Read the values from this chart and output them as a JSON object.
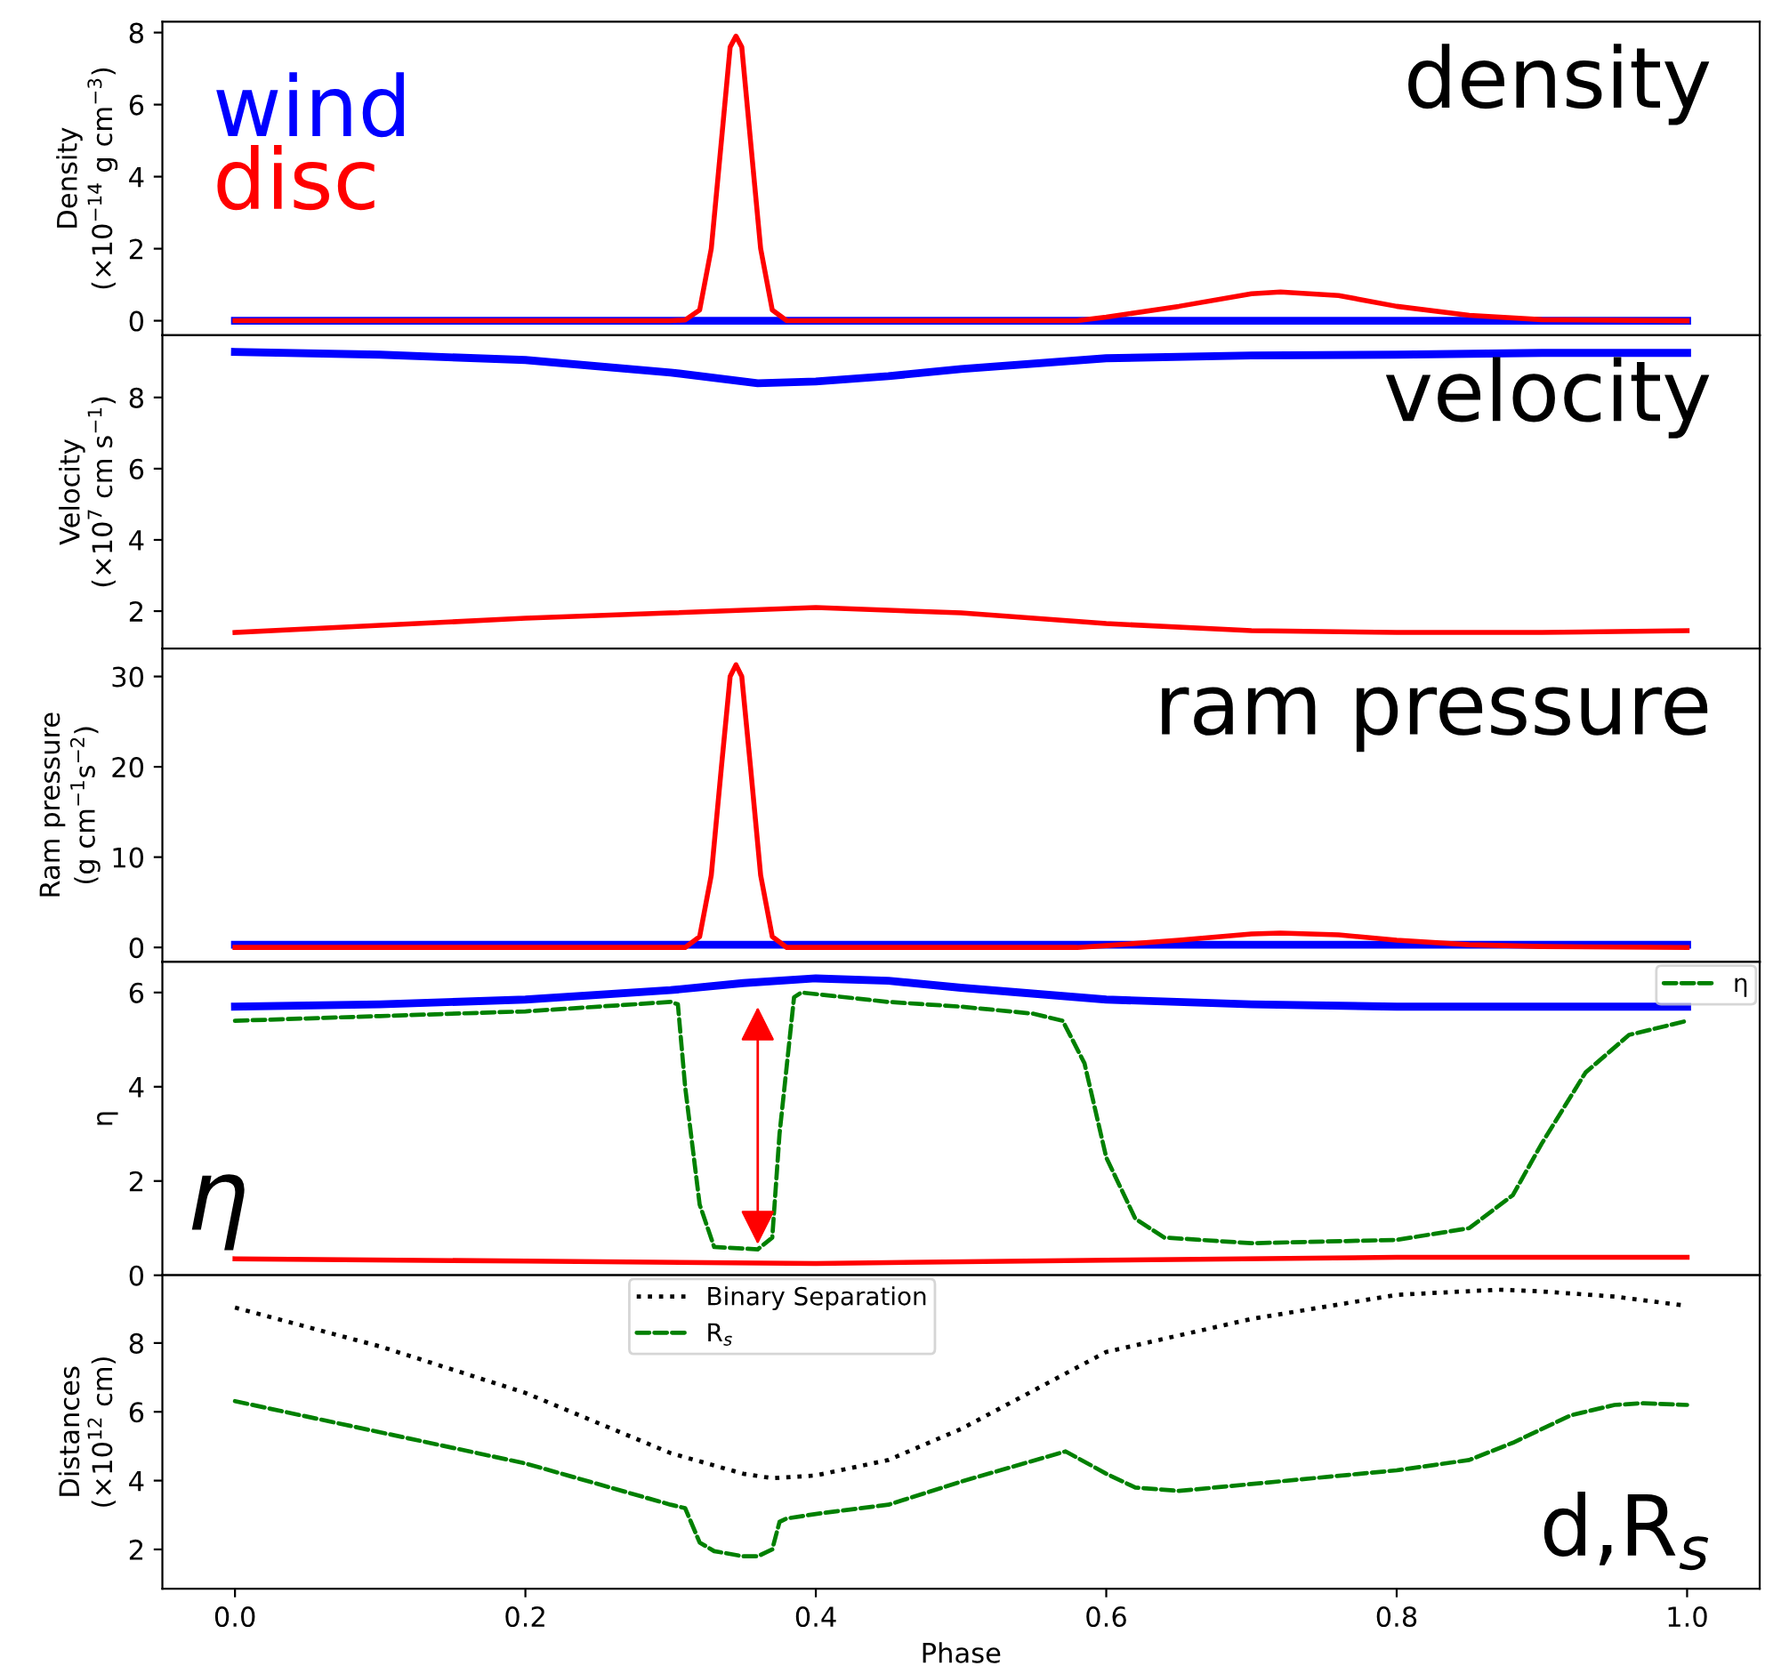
{
  "chart_data": [
    {
      "type": "line",
      "title": "density",
      "ylabel": "Density\n(×10$^{−14}$ g cm$^{−3}$)",
      "xlim": [
        -0.05,
        1.05
      ],
      "ylim": [
        -0.4,
        8.3
      ],
      "yticks": [
        0,
        2,
        4,
        6,
        8
      ],
      "tick_labels": "y",
      "legend": "top left",
      "series": [
        {
          "name": "wind",
          "color": "#0000ff",
          "x": [
            0,
            0.5,
            1
          ],
          "values": [
            0,
            0,
            0
          ]
        },
        {
          "name": "disc",
          "color": "#ff0000",
          "x": [
            0,
            0.3,
            0.31,
            0.32,
            0.328,
            0.335,
            0.341,
            0.345,
            0.349,
            0.355,
            0.362,
            0.37,
            0.38,
            0.58,
            0.6,
            0.65,
            0.7,
            0.72,
            0.76,
            0.8,
            0.85,
            0.9,
            1.0
          ],
          "values": [
            0,
            0,
            0.02,
            0.3,
            2.0,
            5.0,
            7.6,
            7.9,
            7.6,
            5.0,
            2.0,
            0.3,
            0,
            0,
            0.1,
            0.4,
            0.75,
            0.8,
            0.7,
            0.4,
            0.15,
            0.03,
            0
          ]
        }
      ]
    },
    {
      "type": "line",
      "title": "velocity",
      "ylabel": "Velocity\n(×10$^{7}$ cm s$^{−1}$)",
      "xlim": [
        -0.05,
        1.05
      ],
      "ylim": [
        0.95,
        9.75
      ],
      "yticks": [
        2,
        4,
        6,
        8
      ],
      "tick_labels": "y",
      "series": [
        {
          "color": "#0000ff",
          "x": [
            0,
            0.1,
            0.2,
            0.3,
            0.36,
            0.4,
            0.45,
            0.5,
            0.6,
            0.7,
            0.8,
            0.9,
            1.0
          ],
          "values": [
            9.28,
            9.2,
            9.05,
            8.7,
            8.4,
            8.45,
            8.6,
            8.8,
            9.1,
            9.18,
            9.2,
            9.25,
            9.25
          ]
        },
        {
          "color": "#ff0000",
          "x": [
            0,
            0.1,
            0.2,
            0.3,
            0.4,
            0.5,
            0.6,
            0.7,
            0.8,
            0.9,
            1.0
          ],
          "values": [
            1.4,
            1.6,
            1.8,
            1.95,
            2.1,
            1.95,
            1.65,
            1.45,
            1.4,
            1.4,
            1.45
          ]
        }
      ]
    },
    {
      "type": "line",
      "title": "ram pressure",
      "ylabel": "Ram pressure\n(g cm$^{−1}$s$^{−2}$)",
      "xlim": [
        -0.05,
        1.05
      ],
      "ylim": [
        -1.6,
        33.1
      ],
      "yticks": [
        0,
        10,
        20,
        30
      ],
      "tick_labels": "y",
      "series": [
        {
          "color": "#0000ff",
          "x": [
            0,
            0.2,
            0.37,
            0.5,
            0.7,
            1.0
          ],
          "values": [
            0.3,
            0.3,
            0.3,
            0.3,
            0.3,
            0.3
          ]
        },
        {
          "color": "#ff0000",
          "x": [
            0,
            0.3,
            0.31,
            0.32,
            0.328,
            0.335,
            0.341,
            0.345,
            0.349,
            0.355,
            0.362,
            0.37,
            0.38,
            0.58,
            0.6,
            0.65,
            0.7,
            0.72,
            0.76,
            0.8,
            0.85,
            0.9,
            1.0
          ],
          "values": [
            0,
            0,
            0,
            1.2,
            8,
            20,
            30,
            31.3,
            30,
            20,
            8,
            1.2,
            0,
            0,
            0.2,
            0.8,
            1.5,
            1.6,
            1.4,
            0.8,
            0.3,
            0.1,
            0
          ]
        }
      ]
    },
    {
      "type": "line",
      "title": "η",
      "ylabel": "η",
      "xlim": [
        -0.05,
        1.05
      ],
      "ylim": [
        0,
        6.65
      ],
      "yticks": [
        0,
        2,
        4,
        6
      ],
      "tick_labels": "y",
      "legend": "top right",
      "series": [
        {
          "color": "#0000ff",
          "x": [
            0,
            0.1,
            0.2,
            0.3,
            0.35,
            0.4,
            0.45,
            0.5,
            0.6,
            0.7,
            0.8,
            0.9,
            1.0
          ],
          "values": [
            5.7,
            5.75,
            5.85,
            6.05,
            6.2,
            6.3,
            6.25,
            6.1,
            5.85,
            5.75,
            5.7,
            5.7,
            5.7
          ]
        },
        {
          "color": "#ff0000",
          "x": [
            0,
            0.2,
            0.4,
            0.6,
            0.8,
            1.0
          ],
          "values": [
            0.35,
            0.3,
            0.25,
            0.32,
            0.38,
            0.38
          ]
        },
        {
          "name": "η",
          "color": "#008000",
          "line_style": "dashed",
          "x": [
            0,
            0.1,
            0.2,
            0.3,
            0.305,
            0.31,
            0.32,
            0.33,
            0.36,
            0.37,
            0.375,
            0.385,
            0.39,
            0.45,
            0.5,
            0.55,
            0.57,
            0.585,
            0.6,
            0.62,
            0.64,
            0.7,
            0.8,
            0.85,
            0.88,
            0.9,
            0.93,
            0.96,
            1.0
          ],
          "values": [
            5.4,
            5.5,
            5.6,
            5.8,
            5.75,
            4.0,
            1.5,
            0.6,
            0.55,
            0.8,
            3.0,
            5.9,
            6.0,
            5.8,
            5.7,
            5.55,
            5.4,
            4.5,
            2.5,
            1.2,
            0.8,
            0.68,
            0.75,
            1.0,
            1.7,
            2.8,
            4.3,
            5.1,
            5.4
          ]
        }
      ]
    },
    {
      "type": "line",
      "title": "d,R$_{s}$",
      "ylabel": "Distances\n(×10$^{12}$ cm)",
      "xlabel": "Phase",
      "xlim": [
        -0.05,
        1.05
      ],
      "xticks": [
        {
          "value": 0,
          "label": "0.0"
        },
        0.2,
        0.4,
        0.6,
        0.8,
        {
          "value": 1,
          "label": "1.0"
        }
      ],
      "ylim": [
        0.86,
        9.97
      ],
      "yticks": [
        2,
        4,
        6,
        8
      ],
      "legend": "top left",
      "series": [
        {
          "name": "Binary Separation",
          "color": "#000000",
          "line_style": "dotted",
          "x": [
            0,
            0.1,
            0.2,
            0.3,
            0.35,
            0.37,
            0.4,
            0.45,
            0.5,
            0.6,
            0.7,
            0.8,
            0.87,
            0.9,
            0.95,
            1.0
          ],
          "values": [
            9.03,
            7.9,
            6.55,
            4.8,
            4.2,
            4.07,
            4.15,
            4.6,
            5.5,
            7.74,
            8.7,
            9.4,
            9.55,
            9.5,
            9.35,
            9.08
          ]
        },
        {
          "name": "R$_{s}$",
          "color": "#008000",
          "line_style": "dashed",
          "x": [
            0,
            0.2,
            0.3,
            0.31,
            0.32,
            0.33,
            0.35,
            0.36,
            0.37,
            0.375,
            0.38,
            0.4,
            0.45,
            0.5,
            0.572,
            0.6,
            0.62,
            0.65,
            0.7,
            0.8,
            0.85,
            0.88,
            0.92,
            0.95,
            0.97,
            1.0
          ],
          "values": [
            6.31,
            4.5,
            3.3,
            3.2,
            2.2,
            1.95,
            1.8,
            1.8,
            2.0,
            2.8,
            2.9,
            3.03,
            3.3,
            3.97,
            4.85,
            4.2,
            3.8,
            3.7,
            3.9,
            4.3,
            4.6,
            5.1,
            5.9,
            6.2,
            6.25,
            6.2
          ]
        }
      ]
    }
  ]
}
